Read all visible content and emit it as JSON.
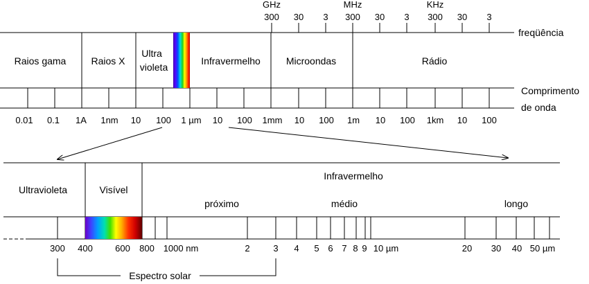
{
  "top": {
    "freq_units": [
      "GHz",
      "MHz",
      "KHz"
    ],
    "freq_ticks": [
      "300",
      "30",
      "3",
      "300",
      "30",
      "3",
      "300",
      "30",
      "3"
    ],
    "freq_label": "freqüência",
    "bands": [
      "Raios gama",
      "Raios X",
      "Ultra",
      "violeta",
      "Infravermelho",
      "Microondas",
      "Rádio"
    ],
    "wave_label_1": "Comprimento",
    "wave_label_2": "de onda",
    "wave_ticks": [
      "0.01",
      "0.1",
      "1A",
      "1nm",
      "10",
      "100",
      "1 µm",
      "10",
      "100",
      "1mm",
      "10",
      "100",
      "1m",
      "10",
      "100",
      "1km",
      "10",
      "100"
    ]
  },
  "bottom": {
    "regions": [
      "Ultravioleta",
      "Visível",
      "Infravermelho"
    ],
    "ir_subregions": [
      "próximo",
      "médio",
      "longo"
    ],
    "ticks": [
      "300",
      "400",
      "600",
      "800",
      "1000 nm",
      "2",
      "3",
      "4",
      "5",
      "6",
      "7",
      "8",
      "9",
      "10 µm",
      "20",
      "30",
      "40",
      "50 µm"
    ],
    "solar_label": "Espectro solar"
  }
}
